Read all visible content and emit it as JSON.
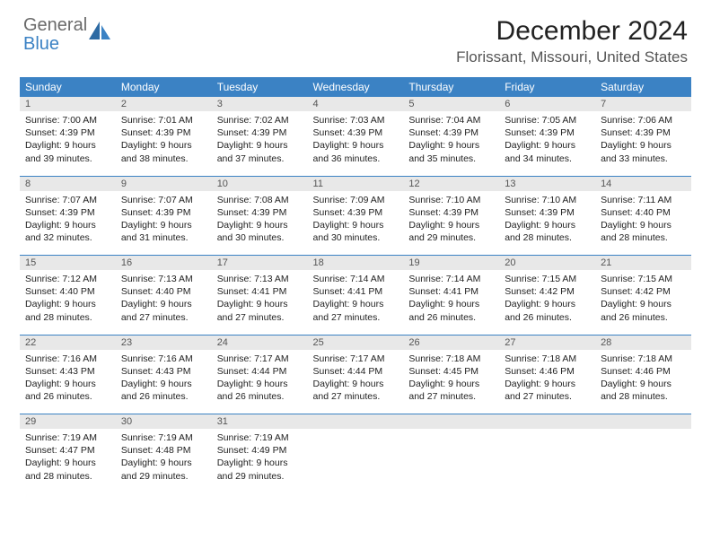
{
  "brand": {
    "general": "General",
    "blue": "Blue"
  },
  "title": "December 2024",
  "location": "Florissant, Missouri, United States",
  "colors": {
    "header_bg": "#3b82c4",
    "header_text": "#ffffff",
    "daynum_bg": "#e8e8e8",
    "daynum_text": "#555555",
    "rule": "#3b82c4",
    "logo_gray": "#6a6a6a",
    "logo_blue": "#3b82c4"
  },
  "weekdays": [
    "Sunday",
    "Monday",
    "Tuesday",
    "Wednesday",
    "Thursday",
    "Friday",
    "Saturday"
  ],
  "days": [
    {
      "n": "1",
      "sr": "7:00 AM",
      "ss": "4:39 PM",
      "dl": "9 hours and 39 minutes."
    },
    {
      "n": "2",
      "sr": "7:01 AM",
      "ss": "4:39 PM",
      "dl": "9 hours and 38 minutes."
    },
    {
      "n": "3",
      "sr": "7:02 AM",
      "ss": "4:39 PM",
      "dl": "9 hours and 37 minutes."
    },
    {
      "n": "4",
      "sr": "7:03 AM",
      "ss": "4:39 PM",
      "dl": "9 hours and 36 minutes."
    },
    {
      "n": "5",
      "sr": "7:04 AM",
      "ss": "4:39 PM",
      "dl": "9 hours and 35 minutes."
    },
    {
      "n": "6",
      "sr": "7:05 AM",
      "ss": "4:39 PM",
      "dl": "9 hours and 34 minutes."
    },
    {
      "n": "7",
      "sr": "7:06 AM",
      "ss": "4:39 PM",
      "dl": "9 hours and 33 minutes."
    },
    {
      "n": "8",
      "sr": "7:07 AM",
      "ss": "4:39 PM",
      "dl": "9 hours and 32 minutes."
    },
    {
      "n": "9",
      "sr": "7:07 AM",
      "ss": "4:39 PM",
      "dl": "9 hours and 31 minutes."
    },
    {
      "n": "10",
      "sr": "7:08 AM",
      "ss": "4:39 PM",
      "dl": "9 hours and 30 minutes."
    },
    {
      "n": "11",
      "sr": "7:09 AM",
      "ss": "4:39 PM",
      "dl": "9 hours and 30 minutes."
    },
    {
      "n": "12",
      "sr": "7:10 AM",
      "ss": "4:39 PM",
      "dl": "9 hours and 29 minutes."
    },
    {
      "n": "13",
      "sr": "7:10 AM",
      "ss": "4:39 PM",
      "dl": "9 hours and 28 minutes."
    },
    {
      "n": "14",
      "sr": "7:11 AM",
      "ss": "4:40 PM",
      "dl": "9 hours and 28 minutes."
    },
    {
      "n": "15",
      "sr": "7:12 AM",
      "ss": "4:40 PM",
      "dl": "9 hours and 28 minutes."
    },
    {
      "n": "16",
      "sr": "7:13 AM",
      "ss": "4:40 PM",
      "dl": "9 hours and 27 minutes."
    },
    {
      "n": "17",
      "sr": "7:13 AM",
      "ss": "4:41 PM",
      "dl": "9 hours and 27 minutes."
    },
    {
      "n": "18",
      "sr": "7:14 AM",
      "ss": "4:41 PM",
      "dl": "9 hours and 27 minutes."
    },
    {
      "n": "19",
      "sr": "7:14 AM",
      "ss": "4:41 PM",
      "dl": "9 hours and 26 minutes."
    },
    {
      "n": "20",
      "sr": "7:15 AM",
      "ss": "4:42 PM",
      "dl": "9 hours and 26 minutes."
    },
    {
      "n": "21",
      "sr": "7:15 AM",
      "ss": "4:42 PM",
      "dl": "9 hours and 26 minutes."
    },
    {
      "n": "22",
      "sr": "7:16 AM",
      "ss": "4:43 PM",
      "dl": "9 hours and 26 minutes."
    },
    {
      "n": "23",
      "sr": "7:16 AM",
      "ss": "4:43 PM",
      "dl": "9 hours and 26 minutes."
    },
    {
      "n": "24",
      "sr": "7:17 AM",
      "ss": "4:44 PM",
      "dl": "9 hours and 26 minutes."
    },
    {
      "n": "25",
      "sr": "7:17 AM",
      "ss": "4:44 PM",
      "dl": "9 hours and 27 minutes."
    },
    {
      "n": "26",
      "sr": "7:18 AM",
      "ss": "4:45 PM",
      "dl": "9 hours and 27 minutes."
    },
    {
      "n": "27",
      "sr": "7:18 AM",
      "ss": "4:46 PM",
      "dl": "9 hours and 27 minutes."
    },
    {
      "n": "28",
      "sr": "7:18 AM",
      "ss": "4:46 PM",
      "dl": "9 hours and 28 minutes."
    },
    {
      "n": "29",
      "sr": "7:19 AM",
      "ss": "4:47 PM",
      "dl": "9 hours and 28 minutes."
    },
    {
      "n": "30",
      "sr": "7:19 AM",
      "ss": "4:48 PM",
      "dl": "9 hours and 29 minutes."
    },
    {
      "n": "31",
      "sr": "7:19 AM",
      "ss": "4:49 PM",
      "dl": "9 hours and 29 minutes."
    }
  ],
  "labels": {
    "sunrise": "Sunrise: ",
    "sunset": "Sunset: ",
    "daylight": "Daylight: "
  }
}
